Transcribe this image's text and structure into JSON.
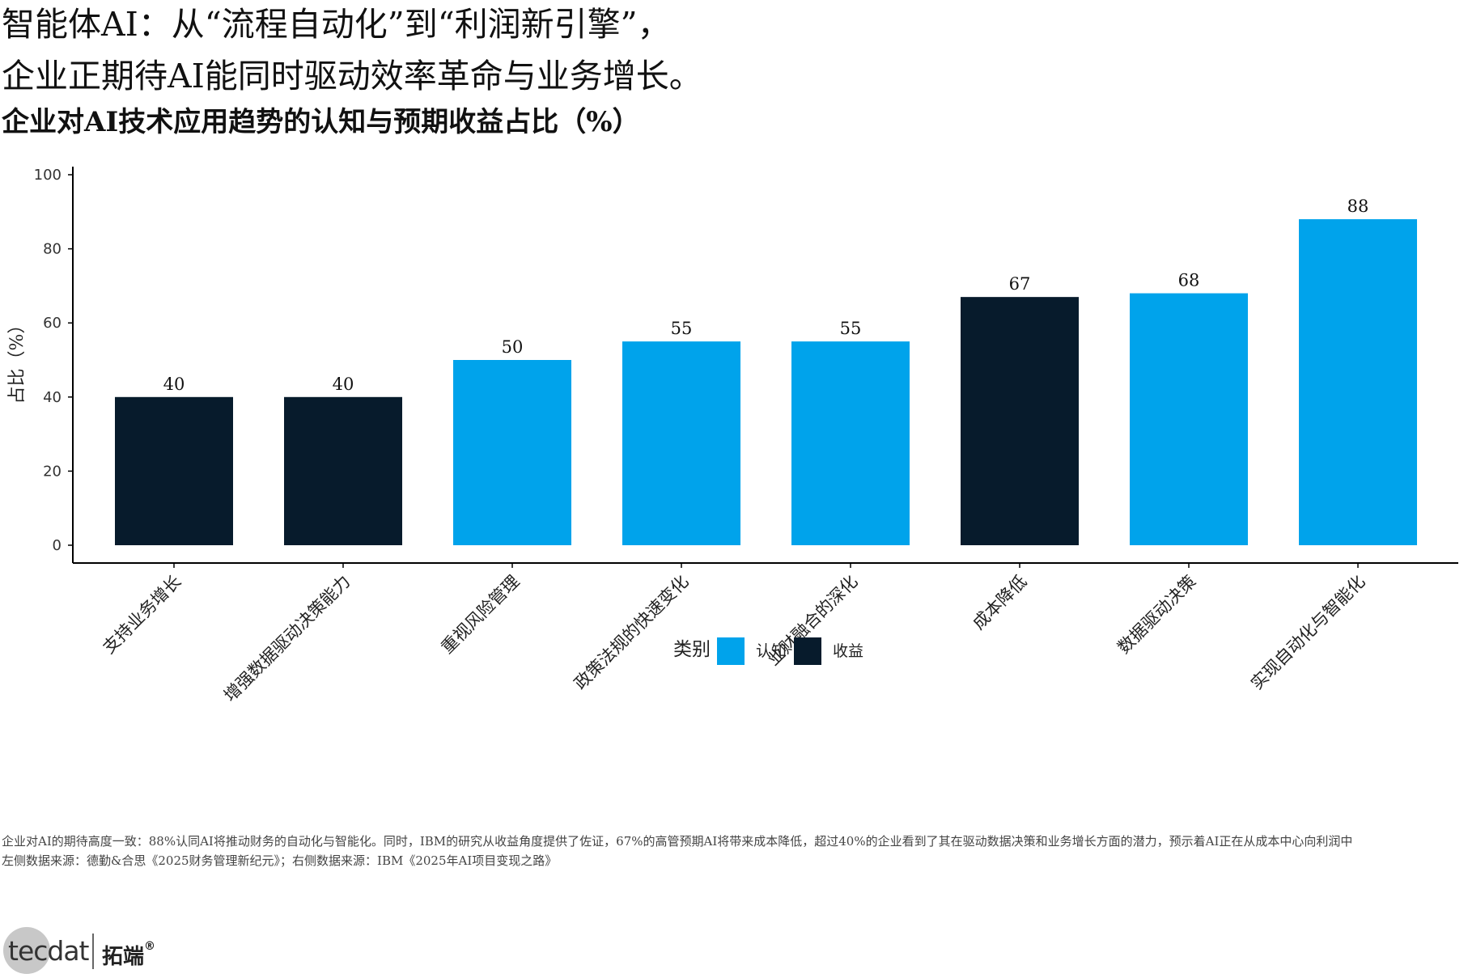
{
  "headline": {
    "line1": "智能体AI：从“流程自动化”到“利润新引擎”，",
    "line2": "企业正期待AI能同时驱动效率革命与业务增长。"
  },
  "subtitle": "企业对AI技术应用趋势的认知与预期收益占比（%）",
  "chart_data": {
    "type": "bar",
    "ylabel": "占比（%）",
    "ylim": [
      0,
      100
    ],
    "yticks": [
      0,
      20,
      40,
      60,
      80,
      100
    ],
    "categories": [
      "支持业务增长",
      "增强数据驱动决策能力",
      "重视风险管理",
      "政策法规的快速变化",
      "业财融合的深化",
      "成本降低",
      "数据驱动决策",
      "实现自动化与智能化"
    ],
    "values": [
      40,
      40,
      50,
      55,
      55,
      67,
      68,
      88
    ],
    "groups": [
      "收益",
      "收益",
      "认知",
      "认知",
      "认知",
      "收益",
      "认知",
      "认知"
    ],
    "legend": {
      "title": "类别",
      "position": "bottom",
      "entries": [
        {
          "name": "认知",
          "color": "#00A3EB"
        },
        {
          "name": "收益",
          "color": "#071B2C"
        }
      ]
    },
    "grid": false
  },
  "notes": {
    "line1": "企业对AI的期待高度一致：88%认同AI将推动财务的自动化与智能化。同时，IBM的研究从收益角度提供了佐证，67%的高管预期AI将带来成本降低，超过40%的企业看到了其在驱动数据决策和业务增长方面的潜力，预示着AI正在从成本中心向利润中",
    "line2": "左侧数据来源：德勤&合思《2025财务管理新纪元》；右侧数据来源：IBM《2025年AI项目变现之路》"
  },
  "logo": {
    "text": "tecdat",
    "cn": "拓端",
    "mark": "®"
  }
}
